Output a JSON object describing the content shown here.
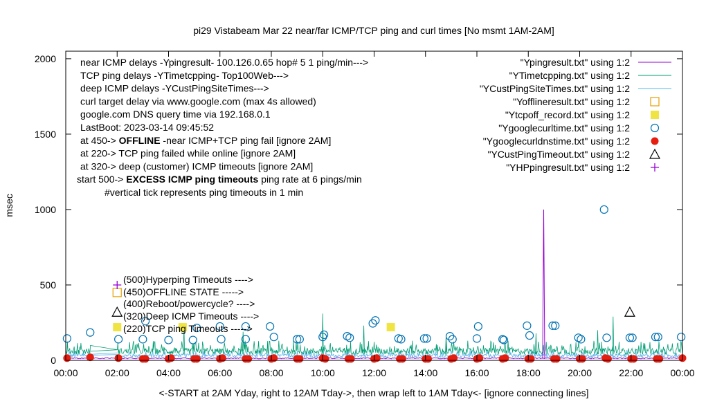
{
  "chart_data": {
    "type": "line",
    "title": "pi29 Vistabeam Mar 22  near/far ICMP/TCP ping and curl times [No msmt 1AM-2AM]",
    "xlabel": "<-START at 2AM Yday, right to 12AM Tday->, then wrap left to 1AM Tday<- [ignore connecting lines]",
    "ylabel": "msec",
    "x_range_hours": [
      0,
      24
    ],
    "ylim": [
      0,
      2050
    ],
    "x_ticks": [
      "00:00",
      "02:00",
      "04:00",
      "06:00",
      "08:00",
      "10:00",
      "12:00",
      "14:00",
      "16:00",
      "18:00",
      "20:00",
      "22:00",
      "00:00"
    ],
    "y_ticks": [
      0,
      500,
      1000,
      1500,
      2000
    ],
    "grid": false,
    "legend_position": "top-right",
    "info_lines": [
      {
        "text": "near ICMP delays -Ypingresult- 100.126.0.65 hop# 5 1 ping/min--->"
      },
      {
        "text": "TCP ping delays -YTimetcpping- Top100Web--->"
      },
      {
        "text": "deep ICMP delays -YCustPingSiteTimes--->"
      },
      {
        "text": "curl target delay via www.google.com (max 4s allowed)"
      },
      {
        "text": "google.com DNS query time via 192.168.0.1"
      },
      {
        "text": "LastBoot: 2023-03-14 09:45:52"
      },
      {
        "pre": "at 450-> ",
        "bold": "OFFLINE",
        "post": " -near ICMP+TCP ping fail [ignore 2AM]"
      },
      {
        "text": "at 220-> TCP ping failed while online [ignore 2AM]"
      },
      {
        "text": "at 320-> deep (customer) ICMP timeouts [ignore 2AM]"
      },
      {
        "pre": "start 500-> ",
        "bold": "EXCESS ICMP ping timeouts",
        "post": "  ping rate at 6 pings/min"
      },
      {
        "text": "#vertical tick represents ping timeouts in 1 min"
      }
    ],
    "marker_labels": [
      {
        "y": 500,
        "text": "(500)Hyperping Timeouts ---->"
      },
      {
        "y": 450,
        "text": "(450)OFFLINE STATE ----->"
      },
      {
        "y": 400,
        "text": "(400)Reboot/powercycle? ---->"
      },
      {
        "y": 320,
        "text": "(320)Deep ICMP Timeouts ---->"
      },
      {
        "y": 220,
        "text": "(220)TCP ping Timeouts ----->"
      }
    ],
    "series": [
      {
        "name": "\"Ypingresult.txt\" using 1:2",
        "style": "line",
        "color": "#9400d3",
        "baseline_ms": 10,
        "spikes": [
          {
            "x": 18.6,
            "y": 1000
          }
        ]
      },
      {
        "name": "\"YTimetcpping.txt\" using 1:2",
        "style": "line",
        "color": "#009e73",
        "baseline_ms": 40,
        "typical_peak_ms": 130,
        "spikes": [
          {
            "x": 4.6,
            "y": 220
          },
          {
            "x": 6.9,
            "y": 190
          },
          {
            "x": 10.0,
            "y": 310
          },
          {
            "x": 11.6,
            "y": 230
          },
          {
            "x": 14.8,
            "y": 170
          },
          {
            "x": 18.3,
            "y": 180
          },
          {
            "x": 20.7,
            "y": 200
          },
          {
            "x": 21.3,
            "y": 290
          }
        ]
      },
      {
        "name": "\"YCustPingSiteTimes.txt\" using 1:2",
        "style": "line",
        "color": "#56b4e9",
        "baseline_ms": 20,
        "typical_peak_ms": 70
      },
      {
        "name": "\"Yofflineresult.txt\" using 1:2",
        "style": "open-square",
        "color": "#e69f00",
        "points": [
          {
            "x": 2.0,
            "y": 450
          }
        ]
      },
      {
        "name": "\"Ytcpoff_record.txt\" using 1:2",
        "style": "filled-square",
        "color": "#f0e442",
        "points": [
          {
            "x": 2.0,
            "y": 220
          },
          {
            "x": 4.55,
            "y": 220
          },
          {
            "x": 12.65,
            "y": 220
          }
        ]
      },
      {
        "name": "\"Ygooglecurltime.txt\" using 1:2",
        "style": "open-circle",
        "color": "#0072b2",
        "points": [
          {
            "x": 0.05,
            "y": 145
          },
          {
            "x": 0.95,
            "y": 185
          },
          {
            "x": 2.05,
            "y": 140
          },
          {
            "x": 3.0,
            "y": 140
          },
          {
            "x": 3.1,
            "y": 260
          },
          {
            "x": 4.0,
            "y": 135
          },
          {
            "x": 4.95,
            "y": 135
          },
          {
            "x": 5.1,
            "y": 215
          },
          {
            "x": 6.05,
            "y": 140
          },
          {
            "x": 6.0,
            "y": 225
          },
          {
            "x": 7.0,
            "y": 140
          },
          {
            "x": 7.0,
            "y": 225
          },
          {
            "x": 7.95,
            "y": 225
          },
          {
            "x": 8.1,
            "y": 155
          },
          {
            "x": 9.0,
            "y": 140
          },
          {
            "x": 9.1,
            "y": 140
          },
          {
            "x": 10.0,
            "y": 155
          },
          {
            "x": 10.05,
            "y": 170
          },
          {
            "x": 10.95,
            "y": 160
          },
          {
            "x": 11.05,
            "y": 150
          },
          {
            "x": 11.95,
            "y": 245
          },
          {
            "x": 12.05,
            "y": 265
          },
          {
            "x": 12.95,
            "y": 145
          },
          {
            "x": 13.05,
            "y": 140
          },
          {
            "x": 13.95,
            "y": 145
          },
          {
            "x": 14.05,
            "y": 145
          },
          {
            "x": 14.95,
            "y": 160
          },
          {
            "x": 15.05,
            "y": 140
          },
          {
            "x": 16.0,
            "y": 145
          },
          {
            "x": 16.05,
            "y": 225
          },
          {
            "x": 17.0,
            "y": 140
          },
          {
            "x": 17.05,
            "y": 135
          },
          {
            "x": 17.95,
            "y": 230
          },
          {
            "x": 18.05,
            "y": 165
          },
          {
            "x": 18.95,
            "y": 230
          },
          {
            "x": 19.05,
            "y": 230
          },
          {
            "x": 19.95,
            "y": 150
          },
          {
            "x": 20.05,
            "y": 140
          },
          {
            "x": 20.95,
            "y": 1000
          },
          {
            "x": 21.05,
            "y": 150
          },
          {
            "x": 21.95,
            "y": 150
          },
          {
            "x": 22.05,
            "y": 150
          },
          {
            "x": 22.95,
            "y": 155
          },
          {
            "x": 23.05,
            "y": 155
          },
          {
            "x": 23.95,
            "y": 155
          }
        ]
      },
      {
        "name": "\"Ygooglecurldnstime.txt\" using 1:2",
        "style": "filled-circle",
        "color": "#e51e10",
        "points": [
          {
            "x": 0.05,
            "y": 15
          },
          {
            "x": 0.95,
            "y": 20
          },
          {
            "x": 2.05,
            "y": 15
          },
          {
            "x": 3.0,
            "y": 10
          },
          {
            "x": 3.1,
            "y": 10
          },
          {
            "x": 4.0,
            "y": 10
          },
          {
            "x": 4.1,
            "y": 15
          },
          {
            "x": 5.0,
            "y": 10
          },
          {
            "x": 5.1,
            "y": 10
          },
          {
            "x": 6.0,
            "y": 10
          },
          {
            "x": 6.1,
            "y": 15
          },
          {
            "x": 7.0,
            "y": 10
          },
          {
            "x": 7.1,
            "y": 10
          },
          {
            "x": 8.0,
            "y": 10
          },
          {
            "x": 8.1,
            "y": 15
          },
          {
            "x": 9.0,
            "y": 10
          },
          {
            "x": 9.1,
            "y": 10
          },
          {
            "x": 10.0,
            "y": 15
          },
          {
            "x": 10.1,
            "y": 10
          },
          {
            "x": 11.0,
            "y": 10
          },
          {
            "x": 11.1,
            "y": 10
          },
          {
            "x": 12.0,
            "y": 10
          },
          {
            "x": 12.1,
            "y": 15
          },
          {
            "x": 13.0,
            "y": 10
          },
          {
            "x": 13.1,
            "y": 10
          },
          {
            "x": 14.0,
            "y": 10
          },
          {
            "x": 14.1,
            "y": 10
          },
          {
            "x": 15.0,
            "y": 10
          },
          {
            "x": 15.1,
            "y": 15
          },
          {
            "x": 16.0,
            "y": 10
          },
          {
            "x": 16.1,
            "y": 15
          },
          {
            "x": 17.0,
            "y": 10
          },
          {
            "x": 17.1,
            "y": 15
          },
          {
            "x": 18.0,
            "y": 10
          },
          {
            "x": 18.1,
            "y": 10
          },
          {
            "x": 19.0,
            "y": 10
          },
          {
            "x": 19.1,
            "y": 10
          },
          {
            "x": 20.0,
            "y": 10
          },
          {
            "x": 20.1,
            "y": 10
          },
          {
            "x": 21.0,
            "y": 15
          },
          {
            "x": 21.1,
            "y": 10
          },
          {
            "x": 22.0,
            "y": 10
          },
          {
            "x": 22.1,
            "y": 10
          },
          {
            "x": 23.0,
            "y": 10
          },
          {
            "x": 23.1,
            "y": 10
          },
          {
            "x": 24.0,
            "y": 15
          }
        ]
      },
      {
        "name": "\"YCustPingTimeout.txt\" using 1:2",
        "style": "open-triangle",
        "color": "#000000",
        "points": [
          {
            "x": 2.0,
            "y": 320
          },
          {
            "x": 21.95,
            "y": 320
          }
        ]
      },
      {
        "name": "\"YHPpingresult.txt\" using 1:2",
        "style": "plus",
        "color": "#9400d3",
        "points": [
          {
            "x": 2.0,
            "y": 500
          }
        ]
      }
    ]
  }
}
